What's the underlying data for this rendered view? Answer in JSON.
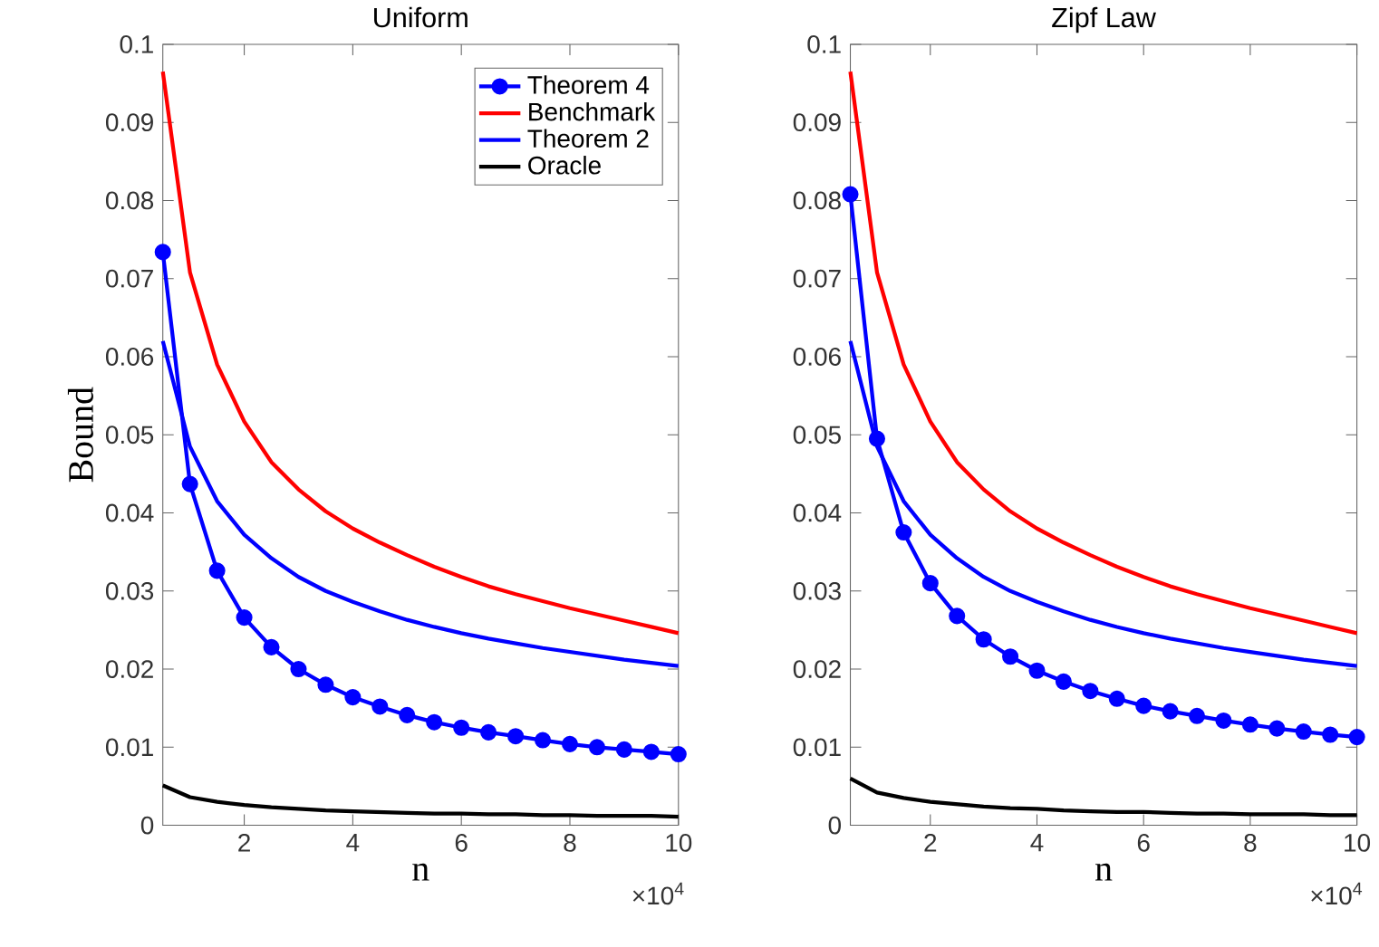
{
  "chart_data": [
    {
      "type": "line",
      "title": "Uniform",
      "xlabel": "n",
      "ylabel": "Bound",
      "annotations": [
        "×10$^{4}$"
      ],
      "x": [
        0.5,
        1,
        1.5,
        2,
        2.5,
        3,
        3.5,
        4,
        4.5,
        5,
        5.5,
        6,
        6.5,
        7,
        7.5,
        8,
        8.5,
        9,
        9.5,
        10
      ],
      "xlim": [
        0.5,
        10
      ],
      "ylim": [
        0,
        0.1
      ],
      "xticks": [
        2,
        4,
        6,
        8,
        10
      ],
      "yticks": [
        0,
        0.01,
        0.02,
        0.03,
        0.04,
        0.05,
        0.06,
        0.07,
        0.08,
        0.09,
        0.1
      ],
      "legend": "top right",
      "grid": false,
      "series": [
        {
          "name": "Theorem 4",
          "color": "#0000ff",
          "marker": "circle",
          "values": [
            0.0734,
            0.0437,
            0.0326,
            0.0266,
            0.0228,
            0.02,
            0.018,
            0.0164,
            0.0152,
            0.0141,
            0.0132,
            0.0125,
            0.0119,
            0.0114,
            0.0109,
            0.0104,
            0.01,
            0.0097,
            0.0094,
            0.0091
          ]
        },
        {
          "name": "Benchmark",
          "color": "#ff0000",
          "marker": "none",
          "values": [
            0.0965,
            0.0708,
            0.059,
            0.0517,
            0.0465,
            0.043,
            0.0402,
            0.038,
            0.0362,
            0.0346,
            0.0331,
            0.0318,
            0.0306,
            0.0296,
            0.0287,
            0.0278,
            0.027,
            0.0262,
            0.0254,
            0.0246
          ]
        },
        {
          "name": "Theorem 2",
          "color": "#0000ff",
          "marker": "none",
          "values": [
            0.062,
            0.0485,
            0.0415,
            0.0372,
            0.0342,
            0.0318,
            0.03,
            0.0286,
            0.0274,
            0.0263,
            0.0254,
            0.0246,
            0.0239,
            0.0233,
            0.0227,
            0.0222,
            0.0217,
            0.0212,
            0.0208,
            0.0204
          ]
        },
        {
          "name": "Oracle",
          "color": "#000000",
          "marker": "none",
          "values": [
            0.0051,
            0.0036,
            0.003,
            0.0026,
            0.0023,
            0.0021,
            0.0019,
            0.0018,
            0.0017,
            0.0016,
            0.0015,
            0.0015,
            0.0014,
            0.0014,
            0.0013,
            0.0013,
            0.0012,
            0.0012,
            0.0012,
            0.0011
          ]
        }
      ]
    },
    {
      "type": "line",
      "title": "Zipf Law",
      "xlabel": "n",
      "annotations": [
        "×10$^{4}$"
      ],
      "x": [
        0.5,
        1,
        1.5,
        2,
        2.5,
        3,
        3.5,
        4,
        4.5,
        5,
        5.5,
        6,
        6.5,
        7,
        7.5,
        8,
        8.5,
        9,
        9.5,
        10
      ],
      "xlim": [
        0.5,
        10
      ],
      "ylim": [
        0,
        0.1
      ],
      "xticks": [
        2,
        4,
        6,
        8,
        10
      ],
      "yticks": [
        0,
        0.01,
        0.02,
        0.03,
        0.04,
        0.05,
        0.06,
        0.07,
        0.08,
        0.09,
        0.1
      ],
      "grid": false,
      "series": [
        {
          "color": "#0000ff",
          "marker": "circle",
          "values": [
            0.0808,
            0.0495,
            0.0375,
            0.031,
            0.0268,
            0.0238,
            0.0216,
            0.0198,
            0.0184,
            0.0172,
            0.0162,
            0.0153,
            0.0146,
            0.014,
            0.0134,
            0.0129,
            0.0124,
            0.012,
            0.0116,
            0.0113
          ]
        },
        {
          "color": "#ff0000",
          "marker": "none",
          "values": [
            0.0965,
            0.0708,
            0.059,
            0.0517,
            0.0465,
            0.043,
            0.0402,
            0.038,
            0.0362,
            0.0346,
            0.0331,
            0.0318,
            0.0306,
            0.0296,
            0.0287,
            0.0278,
            0.027,
            0.0262,
            0.0254,
            0.0246
          ]
        },
        {
          "color": "#0000ff",
          "marker": "none",
          "values": [
            0.062,
            0.0485,
            0.0415,
            0.0372,
            0.0342,
            0.0318,
            0.03,
            0.0286,
            0.0274,
            0.0263,
            0.0254,
            0.0246,
            0.0239,
            0.0233,
            0.0227,
            0.0222,
            0.0217,
            0.0212,
            0.0208,
            0.0204
          ]
        },
        {
          "color": "#000000",
          "marker": "none",
          "values": [
            0.006,
            0.0042,
            0.0035,
            0.003,
            0.0027,
            0.0024,
            0.0022,
            0.0021,
            0.0019,
            0.0018,
            0.0017,
            0.0017,
            0.0016,
            0.0015,
            0.0015,
            0.0014,
            0.0014,
            0.0014,
            0.0013,
            0.0013
          ]
        }
      ]
    }
  ]
}
